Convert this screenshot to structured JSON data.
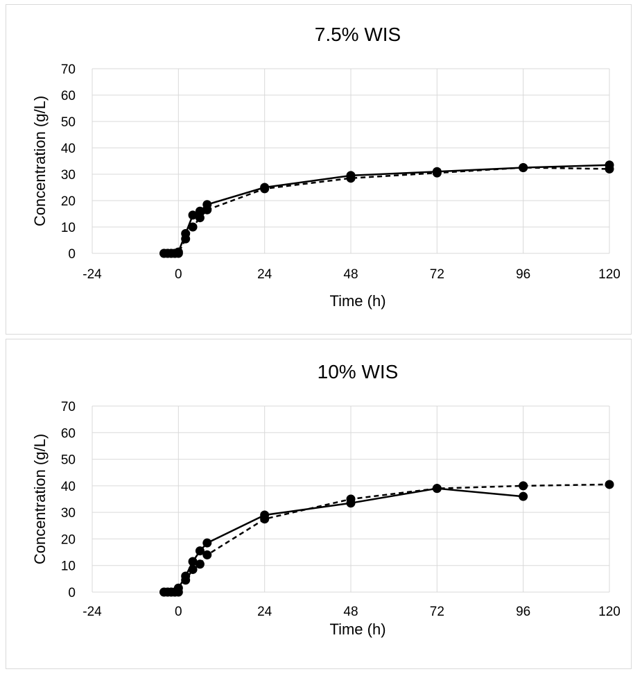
{
  "chart_data": [
    {
      "type": "line",
      "title": "7.5% WIS",
      "xlabel": "Time (h)",
      "ylabel": "Concentration (g/L)",
      "xlim": [
        -24,
        120
      ],
      "ylim": [
        0,
        70
      ],
      "x_ticks": [
        "-24",
        "0",
        "24",
        "48",
        "72",
        "96",
        "120"
      ],
      "y_ticks": [
        "0",
        "10",
        "20",
        "30",
        "40",
        "50",
        "60",
        "70"
      ],
      "grid": true,
      "legend": "none",
      "series": [
        {
          "style": "solid",
          "x": [
            -4,
            -3,
            -2,
            -1,
            0,
            2,
            4,
            6,
            8,
            24,
            48,
            72,
            96,
            120
          ],
          "y": [
            0,
            0,
            0,
            0,
            0.5,
            7.5,
            14.5,
            16,
            18.5,
            25,
            29.5,
            31,
            32.5,
            33.5
          ]
        },
        {
          "style": "dashed",
          "x": [
            -4,
            -3,
            -2,
            -1,
            0,
            2,
            4,
            6,
            8,
            24,
            48,
            72,
            96,
            120
          ],
          "y": [
            0,
            0,
            0,
            0,
            0,
            5.5,
            10,
            13.5,
            16.5,
            24.5,
            28.5,
            30.5,
            32.5,
            32
          ]
        }
      ]
    },
    {
      "type": "line",
      "title": "10% WIS",
      "xlabel": "Time (h)",
      "ylabel": "Concentration (g/L)",
      "xlim": [
        -24,
        120
      ],
      "ylim": [
        0,
        70
      ],
      "x_ticks": [
        "-24",
        "0",
        "24",
        "48",
        "72",
        "96",
        "120"
      ],
      "y_ticks": [
        "0",
        "10",
        "20",
        "30",
        "40",
        "50",
        "60",
        "70"
      ],
      "grid": true,
      "legend": "none",
      "series": [
        {
          "style": "solid",
          "x": [
            -4,
            -3,
            -2,
            -1,
            0,
            2,
            4,
            6,
            8,
            24,
            48,
            72,
            96
          ],
          "y": [
            0,
            0,
            0,
            0,
            1.5,
            6,
            11.5,
            15.5,
            18.5,
            29,
            33.5,
            39,
            36
          ]
        },
        {
          "style": "dashed",
          "x": [
            -4,
            -3,
            -2,
            -1,
            0,
            2,
            4,
            6,
            8,
            24,
            48,
            72,
            96,
            120
          ],
          "y": [
            0,
            0,
            0,
            0,
            0,
            4.5,
            8.5,
            10.5,
            14,
            27.5,
            35,
            39,
            40,
            40.5
          ]
        }
      ]
    }
  ]
}
